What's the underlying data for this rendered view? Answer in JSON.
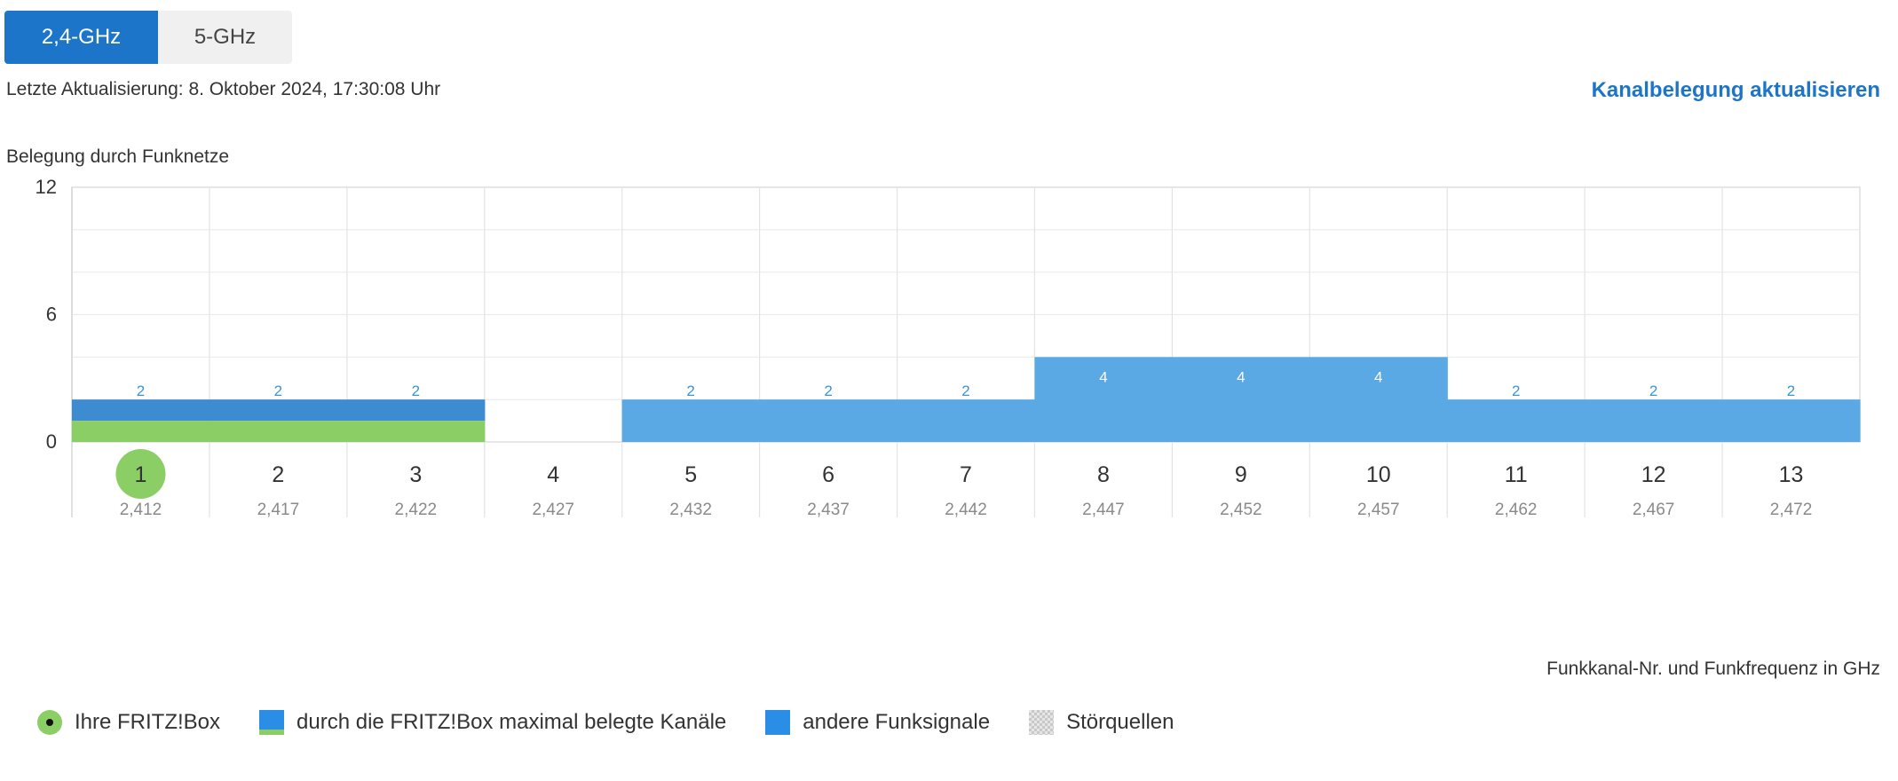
{
  "band_switch": {
    "options": [
      "2,4-GHz",
      "5-GHz"
    ],
    "selected": "2,4-GHz"
  },
  "last_update": "Letzte Aktualisierung: 8. Oktober 2024, 17:30:08 Uhr",
  "refresh_link": "Kanalbelegung aktualisieren",
  "chart_title": "Belegung durch Funknetze",
  "axis_caption": "Funkkanal-Nr. und Funkfrequenz in GHz",
  "legend": {
    "fritzbox": "Ihre FRITZ!Box",
    "max_channels": "durch die FRITZ!Box maximal belegte Kanäle",
    "other_signals": "andere Funksignale",
    "interference": "Störquellen"
  },
  "colors": {
    "accent": "#1c75c8",
    "fritzbox_green": "#8cce66",
    "fritzbox_blue": "#3d8bd0",
    "other_blue": "#5aa9e4",
    "label_blue": "#3a93dc"
  },
  "chart_data": {
    "type": "bar",
    "title": "Belegung durch Funknetze",
    "xlabel": "Funkkanal-Nr. und Funkfrequenz in GHz",
    "ylabel": "",
    "ylim": [
      0,
      12
    ],
    "yticks": [
      0,
      6,
      12
    ],
    "grid": true,
    "categories": [
      "1",
      "2",
      "3",
      "4",
      "5",
      "6",
      "7",
      "8",
      "9",
      "10",
      "11",
      "12",
      "13"
    ],
    "frequencies": [
      "2,412",
      "2,417",
      "2,422",
      "2,427",
      "2,432",
      "2,437",
      "2,442",
      "2,447",
      "2,452",
      "2,457",
      "2,462",
      "2,467",
      "2,472"
    ],
    "values": [
      2,
      2,
      2,
      0,
      2,
      2,
      2,
      4,
      4,
      4,
      2,
      2,
      2
    ],
    "value_labels": [
      "2",
      "2",
      "2",
      "",
      "2",
      "2",
      "2",
      "4",
      "4",
      "4",
      "2",
      "2",
      "2"
    ],
    "fritzbox_channel": "1",
    "fritzbox_channels_max": [
      "1",
      "2",
      "3"
    ],
    "legend_position": "bottom-left"
  }
}
